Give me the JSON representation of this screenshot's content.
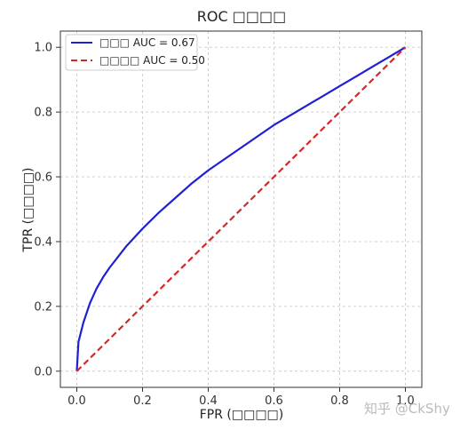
{
  "chart_data": {
    "type": "line",
    "title": "ROC □□□□",
    "xlabel": "FPR (□□□□)",
    "ylabel": "TPR (□□□□)",
    "xlim": [
      -0.05,
      1.05
    ],
    "ylim": [
      -0.05,
      1.05
    ],
    "xticks": [
      "0.0",
      "0.2",
      "0.4",
      "0.6",
      "0.8",
      "1.0"
    ],
    "yticks": [
      "0.0",
      "0.2",
      "0.4",
      "0.6",
      "0.8",
      "1.0"
    ],
    "grid": true,
    "legend_position": "top-left",
    "series": [
      {
        "name": "□□□ AUC = 0.67",
        "color": "#1f1fd6",
        "style": "solid",
        "x": [
          0.0,
          0.005,
          0.01,
          0.02,
          0.04,
          0.06,
          0.08,
          0.1,
          0.15,
          0.2,
          0.25,
          0.3,
          0.35,
          0.4,
          0.45,
          0.5,
          0.55,
          0.6,
          0.65,
          0.7,
          0.75,
          0.8,
          0.85,
          0.9,
          0.95,
          1.0
        ],
        "y": [
          0.0,
          0.09,
          0.11,
          0.15,
          0.21,
          0.255,
          0.29,
          0.32,
          0.385,
          0.44,
          0.49,
          0.535,
          0.58,
          0.62,
          0.655,
          0.69,
          0.725,
          0.76,
          0.79,
          0.82,
          0.85,
          0.88,
          0.91,
          0.94,
          0.97,
          1.0
        ]
      },
      {
        "name": "□□□□ AUC = 0.50",
        "color": "#d62728",
        "style": "dashed",
        "x": [
          0.0,
          1.0
        ],
        "y": [
          0.0,
          1.0
        ]
      }
    ]
  },
  "watermark": "知乎 @CkShy"
}
